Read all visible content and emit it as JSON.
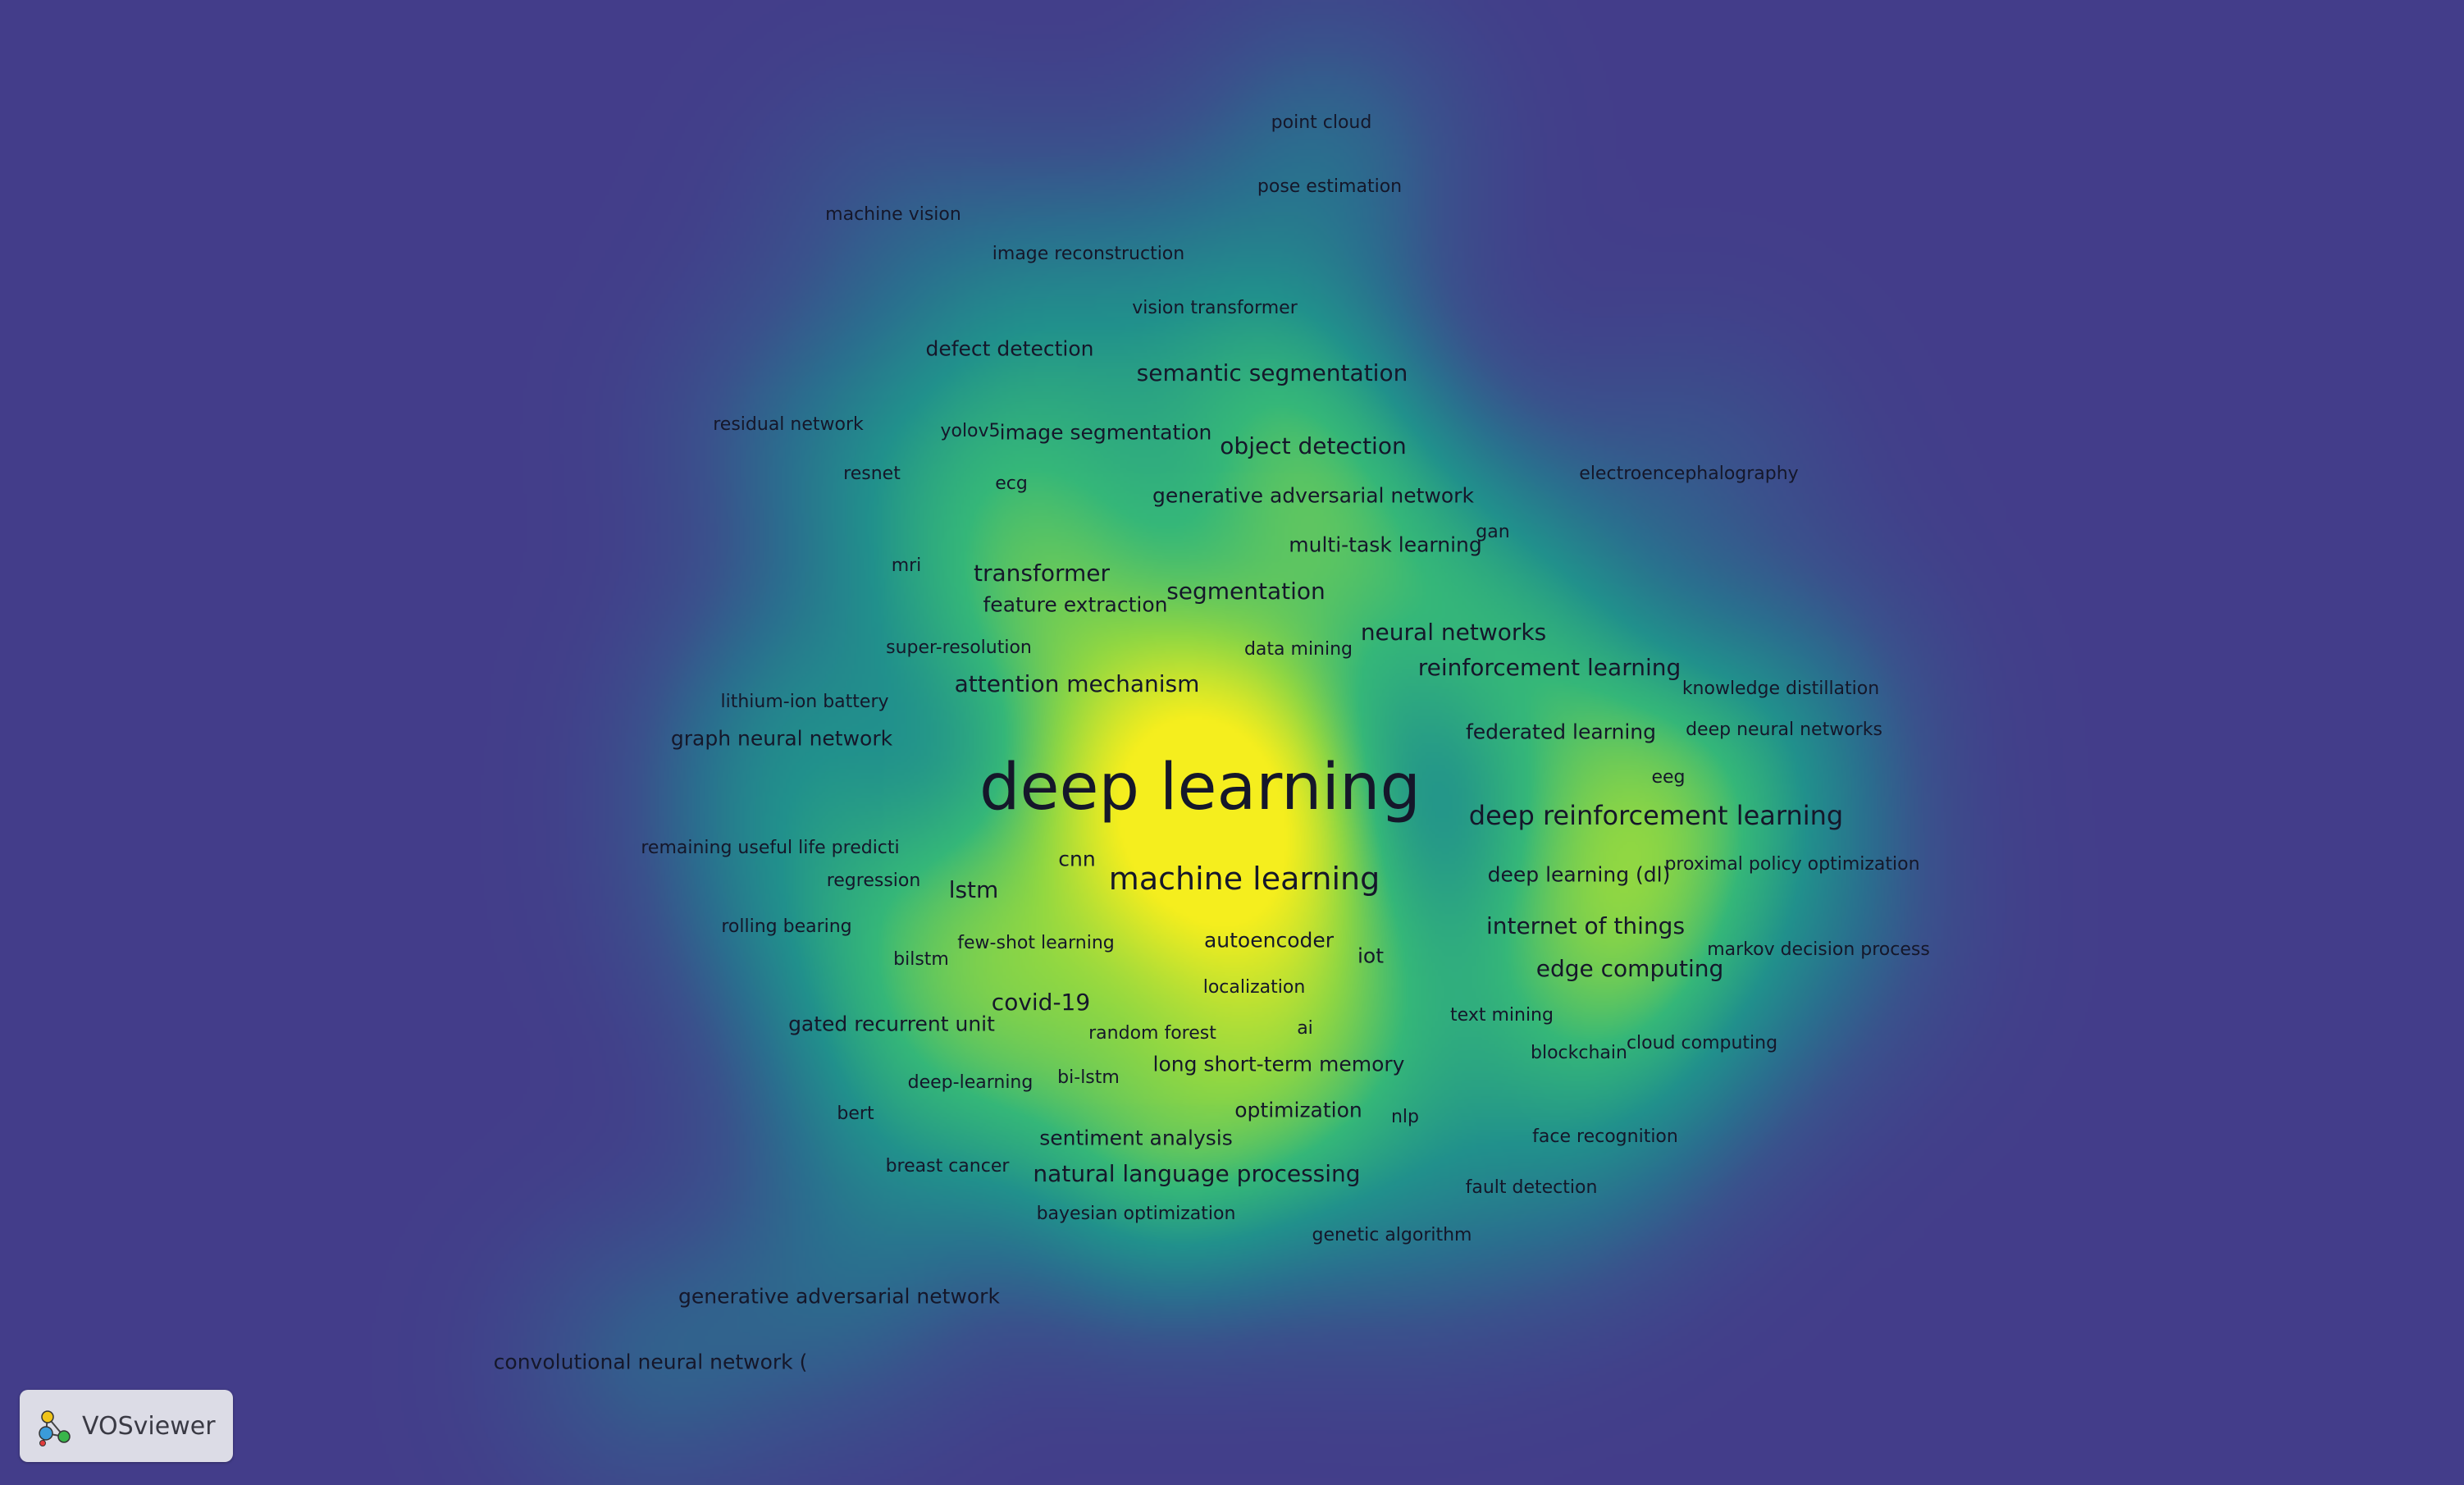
{
  "app": {
    "logo_text": "VOSviewer"
  },
  "colors": {
    "background": "#433d8a",
    "density_low": "#2f6d8f",
    "density_mid": "#21a083",
    "density_high": "#f2ef1c",
    "label": "#15172a"
  },
  "keywords": [
    {
      "id": "point-cloud",
      "label": "point cloud",
      "size": 1
    },
    {
      "id": "pose-estimation",
      "label": "pose estimation",
      "size": 1
    },
    {
      "id": "machine-vision",
      "label": "machine vision",
      "size": 1
    },
    {
      "id": "image-reconstruction",
      "label": "image reconstruction",
      "size": 1
    },
    {
      "id": "vision-transformer",
      "label": "vision transformer",
      "size": 1
    },
    {
      "id": "defect-detection",
      "label": "defect detection",
      "size": 2
    },
    {
      "id": "semantic-segmentation",
      "label": "semantic segmentation",
      "size": 3
    },
    {
      "id": "residual-network",
      "label": "residual network",
      "size": 1
    },
    {
      "id": "yolov5",
      "label": "yolov5",
      "size": 1
    },
    {
      "id": "image-segmentation",
      "label": "image segmentation",
      "size": 2
    },
    {
      "id": "object-detection",
      "label": "object detection",
      "size": 3
    },
    {
      "id": "electroencephalography",
      "label": "electroencephalography",
      "size": 1
    },
    {
      "id": "resnet",
      "label": "resnet",
      "size": 1
    },
    {
      "id": "ecg",
      "label": "ecg",
      "size": 1
    },
    {
      "id": "generative-adversarial-network-1",
      "label": "generative adversarial network",
      "size": 2
    },
    {
      "id": "multi-task-learning",
      "label": "multi-task learning",
      "size": 2
    },
    {
      "id": "gan",
      "label": "gan",
      "size": 1
    },
    {
      "id": "mri",
      "label": "mri",
      "size": 1
    },
    {
      "id": "transformer",
      "label": "transformer",
      "size": 3
    },
    {
      "id": "feature-extraction",
      "label": "feature extraction",
      "size": 2
    },
    {
      "id": "segmentation",
      "label": "segmentation",
      "size": 3
    },
    {
      "id": "neural-networks",
      "label": "neural networks",
      "size": 3
    },
    {
      "id": "super-resolution",
      "label": "super-resolution",
      "size": 1
    },
    {
      "id": "data-mining",
      "label": "data mining",
      "size": 1
    },
    {
      "id": "reinforcement-learning",
      "label": "reinforcement learning",
      "size": 3
    },
    {
      "id": "knowledge-distillation",
      "label": "knowledge distillation",
      "size": 1
    },
    {
      "id": "attention-mechanism",
      "label": "attention mechanism",
      "size": 3
    },
    {
      "id": "lithium-ion-battery",
      "label": "lithium-ion battery",
      "size": 1
    },
    {
      "id": "federated-learning",
      "label": "federated learning",
      "size": 2
    },
    {
      "id": "deep-neural-networks",
      "label": "deep neural networks",
      "size": 1
    },
    {
      "id": "graph-neural-network",
      "label": "graph neural network",
      "size": 2
    },
    {
      "id": "deep-learning",
      "label": "deep learning",
      "size": 6
    },
    {
      "id": "eeg",
      "label": "eeg",
      "size": 1
    },
    {
      "id": "deep-reinforcement-learning",
      "label": "deep reinforcement learning",
      "size": 4
    },
    {
      "id": "remaining-useful-life",
      "label": "remaining useful life predicti",
      "size": 1
    },
    {
      "id": "cnn",
      "label": "cnn",
      "size": 2
    },
    {
      "id": "machine-learning",
      "label": "machine learning",
      "size": 5
    },
    {
      "id": "deep-learning-dl",
      "label": "deep learning (dl)",
      "size": 2
    },
    {
      "id": "proximal-policy-optimization",
      "label": "proximal policy optimization",
      "size": 1
    },
    {
      "id": "regression",
      "label": "regression",
      "size": 1
    },
    {
      "id": "lstm",
      "label": "lstm",
      "size": 2
    },
    {
      "id": "internet-of-things",
      "label": "internet of things",
      "size": 3
    },
    {
      "id": "rolling-bearing",
      "label": "rolling bearing",
      "size": 1
    },
    {
      "id": "few-shot-learning",
      "label": "few-shot learning",
      "size": 1
    },
    {
      "id": "autoencoder",
      "label": "autoencoder",
      "size": 2
    },
    {
      "id": "bilstm",
      "label": "bilstm",
      "size": 1
    },
    {
      "id": "iot",
      "label": "iot",
      "size": 2
    },
    {
      "id": "edge-computing",
      "label": "edge computing",
      "size": 3
    },
    {
      "id": "markov-decision-process",
      "label": "markov decision process",
      "size": 1
    },
    {
      "id": "localization",
      "label": "localization",
      "size": 1
    },
    {
      "id": "covid-19",
      "label": "covid-19",
      "size": 3
    },
    {
      "id": "gated-recurrent-unit",
      "label": "gated recurrent unit",
      "size": 2
    },
    {
      "id": "text-mining",
      "label": "text mining",
      "size": 1
    },
    {
      "id": "random-forest",
      "label": "random forest",
      "size": 1
    },
    {
      "id": "ai",
      "label": "ai",
      "size": 1
    },
    {
      "id": "blockchain",
      "label": "blockchain",
      "size": 1
    },
    {
      "id": "cloud-computing",
      "label": "cloud computing",
      "size": 1
    },
    {
      "id": "long-short-term-memory",
      "label": "long short-term memory",
      "size": 2
    },
    {
      "id": "deep-learning-hyphen",
      "label": "deep-learning",
      "size": 1
    },
    {
      "id": "bi-lstm",
      "label": "bi-lstm",
      "size": 1
    },
    {
      "id": "bert",
      "label": "bert",
      "size": 1
    },
    {
      "id": "optimization",
      "label": "optimization",
      "size": 2
    },
    {
      "id": "nlp",
      "label": "nlp",
      "size": 1
    },
    {
      "id": "sentiment-analysis",
      "label": "sentiment analysis",
      "size": 2
    },
    {
      "id": "face-recognition",
      "label": "face recognition",
      "size": 1
    },
    {
      "id": "breast-cancer",
      "label": "breast cancer",
      "size": 1
    },
    {
      "id": "natural-language-processing",
      "label": "natural language processing",
      "size": 3
    },
    {
      "id": "fault-detection",
      "label": "fault detection",
      "size": 1
    },
    {
      "id": "bayesian-optimization",
      "label": "bayesian optimization",
      "size": 1
    },
    {
      "id": "genetic-algorithm",
      "label": "genetic algorithm",
      "size": 1
    },
    {
      "id": "generative-adversarial-network-2",
      "label": "generative adversarial network",
      "size": 2
    },
    {
      "id": "convolutional-neural-network",
      "label": "convolutional neural network (",
      "size": 2
    }
  ]
}
